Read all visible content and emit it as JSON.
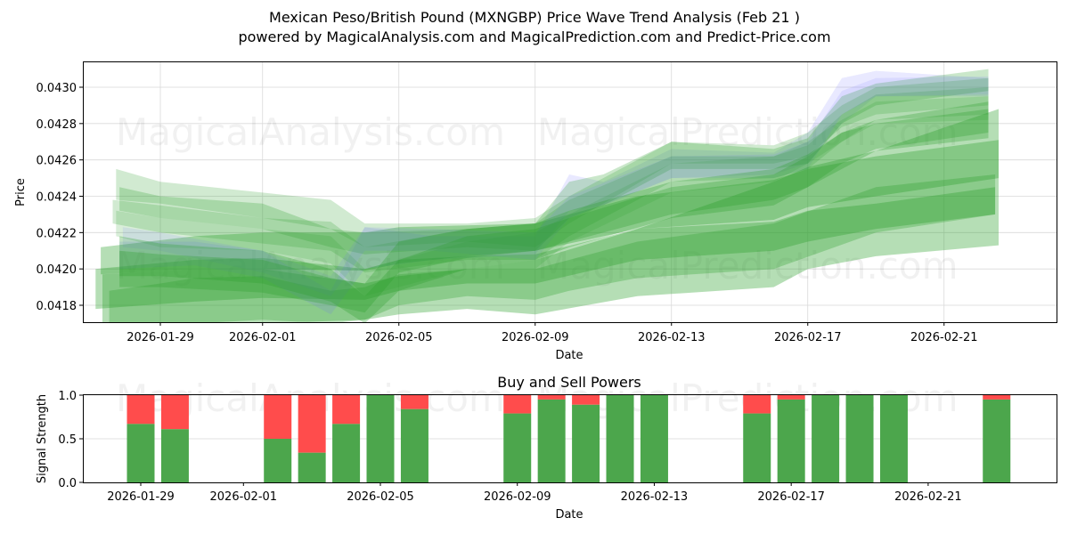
{
  "header": {
    "title": "Mexican Peso/British Pound (MXNGBP) Price Wave Trend Analysis (Feb 21 )",
    "subtitle": "powered by MagicalAnalysis.com and MagicalPrediction.com and Predict-Price.com"
  },
  "watermarks": [
    "MagicalAnalysis.com",
    "MagicalPrediction.com"
  ],
  "colors": {
    "green_band": "#2ca02c",
    "blue_band": "#6a6aff",
    "buy": "#4ca64c",
    "sell": "#ff4c4c",
    "grid": "#d9d9d9"
  },
  "chart_data": [
    {
      "type": "area",
      "title": "Mexican Peso/British Pound (MXNGBP) Price Wave Trend Analysis (Feb 21 )",
      "xlabel": "Date",
      "ylabel": "Price",
      "x_tick_labels": [
        "2026-01-29",
        "2026-02-01",
        "2026-02-05",
        "2026-02-09",
        "2026-02-13",
        "2026-02-17",
        "2026-02-21"
      ],
      "y_tick_labels": [
        "0.0418",
        "0.0420",
        "0.0422",
        "0.0424",
        "0.0426",
        "0.0428",
        "0.0430"
      ],
      "ylim": [
        0.04171,
        0.04314
      ],
      "xlim": [
        "2026-01-26",
        "2026-02-24"
      ],
      "grid": true,
      "x_dates": [
        "2026-01-27",
        "2026-01-28",
        "2026-01-29",
        "2026-01-30",
        "2026-02-02",
        "2026-02-03",
        "2026-02-04",
        "2026-02-05",
        "2026-02-06",
        "2026-02-09",
        "2026-02-10",
        "2026-02-11",
        "2026-02-12",
        "2026-02-13",
        "2026-02-16",
        "2026-02-17",
        "2026-02-18",
        "2026-02-19",
        "2026-02-20",
        "2026-02-23"
      ],
      "series": [
        {
          "name": "band-1",
          "color": "green",
          "alpha": 0.35,
          "x": [
            -1.8,
            1,
            3,
            6,
            7,
            9,
            11,
            11,
            14.5,
            18,
            19,
            21,
            24.6,
            24.6,
            21,
            19,
            18,
            14.5,
            11,
            11,
            9,
            7,
            6,
            3,
            1,
            -1.8
          ],
          "upper": [
            0.04212,
            0.04218,
            0.0422,
            0.0422,
            0.04223,
            0.04223,
            0.04225,
            0.04225,
            0.0424,
            0.04245,
            0.04252,
            0.04255,
            0.04265,
            0.04266,
            0.04272,
            0.04263,
            0.04256,
            0.04249,
            0.04232,
            0.04227,
            0.04227,
            0.04225,
            0.04222,
            0.0422,
            0.04218,
            0.04212
          ]
        },
        {
          "name": "band-2",
          "color": "green",
          "alpha": 0.35
        },
        {
          "name": "band-3",
          "color": "blue",
          "alpha": 0.15
        }
      ],
      "bands_note": "Overlapping translucent green (and a few blue) wave bands; overall trend rises from ~0.0420 (late Jan) to ~0.0426-0.0430 (Feb 23), with a dip near 2026-02-03 (~0.0418) and a jump around 2026-02-18/19."
    },
    {
      "type": "bar",
      "title": "Buy and Sell Powers",
      "xlabel": "Date",
      "ylabel": "Signal Strength",
      "ylim": [
        0,
        1
      ],
      "y_tick_labels": [
        "0.0",
        "0.5",
        "1.0"
      ],
      "x_tick_labels": [
        "2026-01-29",
        "2026-02-01",
        "2026-02-05",
        "2026-02-09",
        "2026-02-13",
        "2026-02-17",
        "2026-02-21"
      ],
      "categories": [
        "2026-01-29",
        "2026-01-30",
        "2026-02-02",
        "2026-02-03",
        "2026-02-04",
        "2026-02-05",
        "2026-02-06",
        "2026-02-09",
        "2026-02-10",
        "2026-02-11",
        "2026-02-12",
        "2026-02-13",
        "2026-02-16",
        "2026-02-17",
        "2026-02-18",
        "2026-02-19",
        "2026-02-20",
        "2026-02-23"
      ],
      "series": [
        {
          "name": "Buy",
          "color": "#4ca64c",
          "values": [
            0.67,
            0.61,
            0.5,
            0.34,
            0.67,
            1.0,
            0.84,
            0.79,
            0.95,
            0.89,
            1.0,
            1.0,
            0.79,
            0.95,
            1.0,
            1.0,
            1.0,
            0.95
          ]
        },
        {
          "name": "Sell",
          "color": "#ff4c4c",
          "values": [
            0.33,
            0.39,
            0.5,
            0.66,
            0.33,
            0.0,
            0.16,
            0.21,
            0.05,
            0.11,
            0.0,
            0.0,
            0.21,
            0.05,
            0.0,
            0.0,
            0.0,
            0.05
          ]
        }
      ]
    }
  ],
  "bands": [
    {
      "c": "g",
      "a": 0.35,
      "pts": [
        [
          -1.75,
          0.04212,
          0.04197
        ],
        [
          1,
          0.04218,
          0.042
        ],
        [
          3,
          0.0422,
          0.042
        ],
        [
          6,
          0.0422,
          0.04199
        ],
        [
          7,
          0.04223,
          0.04203
        ],
        [
          9,
          0.04224,
          0.04207
        ],
        [
          11,
          0.04225,
          0.0421
        ],
        [
          14,
          0.0424,
          0.04222
        ],
        [
          18,
          0.04249,
          0.04227
        ],
        [
          19,
          0.04255,
          0.04234
        ],
        [
          21,
          0.04262,
          0.0424
        ],
        [
          24.6,
          0.04271,
          0.0425
        ]
      ]
    },
    {
      "c": "g",
      "a": 0.35,
      "pts": [
        [
          -1.9,
          0.042,
          0.04178
        ],
        [
          1,
          0.04205,
          0.04182
        ],
        [
          3,
          0.04206,
          0.04184
        ],
        [
          6,
          0.042,
          0.04183
        ],
        [
          7,
          0.04205,
          0.04188
        ],
        [
          9,
          0.04207,
          0.04192
        ],
        [
          11,
          0.04208,
          0.04192
        ],
        [
          14,
          0.04222,
          0.04205
        ],
        [
          18,
          0.04226,
          0.0421
        ],
        [
          19,
          0.04232,
          0.04215
        ],
        [
          21,
          0.04236,
          0.04222
        ],
        [
          24.5,
          0.04245,
          0.0423
        ]
      ]
    },
    {
      "c": "g",
      "a": 0.35,
      "pts": [
        [
          -1.7,
          0.04197,
          0.0416
        ],
        [
          1,
          0.042,
          0.04165
        ],
        [
          3,
          0.042,
          0.0417
        ],
        [
          6,
          0.04192,
          0.04172
        ],
        [
          7,
          0.04196,
          0.04175
        ],
        [
          9,
          0.042,
          0.04178
        ],
        [
          11,
          0.04205,
          0.04175
        ],
        [
          14,
          0.04222,
          0.04185
        ],
        [
          18,
          0.04248,
          0.0419
        ],
        [
          19,
          0.04256,
          0.042
        ],
        [
          21,
          0.04265,
          0.04207
        ],
        [
          24.6,
          0.04288,
          0.04213
        ]
      ]
    },
    {
      "c": "g",
      "a": 0.3,
      "pts": [
        [
          -1.5,
          0.04188,
          0.0416
        ],
        [
          0,
          0.04192,
          0.04165
        ],
        [
          1,
          0.04195,
          0.0417
        ],
        [
          3,
          0.04196,
          0.04172
        ],
        [
          5,
          0.04188,
          0.0417
        ],
        [
          6,
          0.0419,
          0.04172
        ],
        [
          7,
          0.04197,
          0.0418
        ],
        [
          9,
          0.042,
          0.04185
        ],
        [
          11,
          0.042,
          0.04183
        ],
        [
          12,
          0.04205,
          0.04188
        ],
        [
          14,
          0.04215,
          0.04195
        ],
        [
          18,
          0.04225,
          0.042
        ],
        [
          21,
          0.04245,
          0.0422
        ],
        [
          24.5,
          0.04252,
          0.0423
        ]
      ]
    },
    {
      "c": "b",
      "a": 0.15,
      "pts": [
        [
          -1.2,
          0.04215,
          0.042
        ],
        [
          1,
          0.04215,
          0.04202
        ],
        [
          3,
          0.0421,
          0.04195
        ],
        [
          5,
          0.04188,
          0.04175
        ],
        [
          6,
          0.04223,
          0.042
        ],
        [
          8,
          0.04218,
          0.04205
        ],
        [
          11,
          0.04218,
          0.04208
        ],
        [
          12,
          0.04252,
          0.04232
        ],
        [
          13,
          0.04248,
          0.04235
        ],
        [
          15,
          0.04266,
          0.0425
        ],
        [
          18,
          0.04264,
          0.04252
        ],
        [
          19,
          0.04275,
          0.04258
        ],
        [
          20,
          0.04305,
          0.0428
        ],
        [
          21,
          0.04309,
          0.04295
        ],
        [
          24.3,
          0.04305,
          0.04295
        ]
      ]
    },
    {
      "c": "g",
      "a": 0.25,
      "pts": [
        [
          -1.2,
          0.04245,
          0.04232
        ],
        [
          0,
          0.0424,
          0.04228
        ],
        [
          3,
          0.04236,
          0.04222
        ],
        [
          5,
          0.04222,
          0.04212
        ],
        [
          6,
          0.0422,
          0.04208
        ],
        [
          9,
          0.04222,
          0.04212
        ],
        [
          11,
          0.04225,
          0.0421
        ],
        [
          12,
          0.04248,
          0.04228
        ],
        [
          13,
          0.04252,
          0.04235
        ],
        [
          15,
          0.0427,
          0.04255
        ],
        [
          18,
          0.04266,
          0.04255
        ],
        [
          19,
          0.04272,
          0.04258
        ],
        [
          20,
          0.04295,
          0.0428
        ],
        [
          21,
          0.04302,
          0.0429
        ],
        [
          24.3,
          0.0431,
          0.04298
        ]
      ]
    },
    {
      "c": "g",
      "a": 0.22,
      "pts": [
        [
          -1.3,
          0.04255,
          0.04238
        ],
        [
          0,
          0.04248,
          0.04236
        ],
        [
          3,
          0.04242,
          0.04228
        ],
        [
          5,
          0.04238,
          0.04222
        ],
        [
          6,
          0.04225,
          0.04212
        ],
        [
          9,
          0.04225,
          0.04215
        ],
        [
          11,
          0.04228,
          0.04212
        ],
        [
          12,
          0.0424,
          0.04225
        ],
        [
          15,
          0.0427,
          0.04258
        ],
        [
          18,
          0.04268,
          0.04258
        ],
        [
          19,
          0.04275,
          0.04262
        ],
        [
          20,
          0.0429,
          0.04278
        ],
        [
          21,
          0.043,
          0.04285
        ],
        [
          24.3,
          0.04305,
          0.0429
        ]
      ]
    },
    {
      "c": "g",
      "a": 0.22,
      "pts": [
        [
          -1.4,
          0.04238,
          0.04225
        ],
        [
          0,
          0.04235,
          0.0422
        ],
        [
          3,
          0.04228,
          0.04214
        ],
        [
          5,
          0.04226,
          0.0421
        ],
        [
          6,
          0.04212,
          0.04198
        ],
        [
          9,
          0.04222,
          0.04205
        ],
        [
          11,
          0.04225,
          0.04205
        ],
        [
          12,
          0.04238,
          0.04218
        ],
        [
          15,
          0.04262,
          0.04248
        ],
        [
          18,
          0.04262,
          0.0425
        ],
        [
          19,
          0.04268,
          0.04255
        ],
        [
          20,
          0.04285,
          0.0427
        ],
        [
          21,
          0.04296,
          0.04282
        ],
        [
          24.3,
          0.043,
          0.04285
        ]
      ]
    },
    {
      "c": "g",
      "a": 0.18,
      "pts": [
        [
          -1.3,
          0.04232,
          0.04218
        ],
        [
          0,
          0.04228,
          0.04212
        ],
        [
          3,
          0.04222,
          0.0421
        ],
        [
          5,
          0.04218,
          0.04203
        ],
        [
          6,
          0.042,
          0.04185
        ],
        [
          9,
          0.04215,
          0.042
        ],
        [
          11,
          0.0422,
          0.042
        ],
        [
          12,
          0.0423,
          0.04215
        ],
        [
          15,
          0.04258,
          0.04242
        ],
        [
          18,
          0.04262,
          0.04248
        ],
        [
          19,
          0.0427,
          0.04258
        ],
        [
          20,
          0.04282,
          0.0427
        ],
        [
          21,
          0.04292,
          0.0428
        ],
        [
          24.3,
          0.04295,
          0.04282
        ]
      ]
    },
    {
      "c": "b",
      "a": 0.12,
      "pts": [
        [
          -1.1,
          0.04223,
          0.04212
        ],
        [
          0,
          0.0422,
          0.0421
        ],
        [
          3,
          0.0421,
          0.04198
        ],
        [
          5,
          0.04196,
          0.04185
        ],
        [
          6,
          0.04223,
          0.0421
        ],
        [
          8,
          0.04222,
          0.0421
        ],
        [
          11,
          0.0422,
          0.04205
        ],
        [
          12,
          0.0424,
          0.04228
        ],
        [
          15,
          0.04262,
          0.0425
        ],
        [
          18,
          0.04263,
          0.0425
        ],
        [
          19,
          0.0427,
          0.04255
        ],
        [
          20,
          0.04298,
          0.04285
        ],
        [
          21,
          0.04305,
          0.04295
        ],
        [
          24.3,
          0.04306,
          0.04296
        ]
      ]
    },
    {
      "c": "g",
      "a": 0.3,
      "pts": [
        [
          -1.2,
          0.0421,
          0.0419
        ],
        [
          0,
          0.04208,
          0.0419
        ],
        [
          3,
          0.04205,
          0.04187
        ],
        [
          5,
          0.04195,
          0.0418
        ],
        [
          6,
          0.04192,
          0.04176
        ],
        [
          7,
          0.04215,
          0.04198
        ],
        [
          9,
          0.04222,
          0.04206
        ],
        [
          11,
          0.04225,
          0.0421
        ],
        [
          12,
          0.04232,
          0.04215
        ],
        [
          15,
          0.04248,
          0.0423
        ],
        [
          18,
          0.04255,
          0.04238
        ],
        [
          19,
          0.04263,
          0.04245
        ],
        [
          20,
          0.04275,
          0.04255
        ],
        [
          21,
          0.0428,
          0.04265
        ],
        [
          24.3,
          0.04288,
          0.04272
        ]
      ]
    },
    {
      "c": "g",
      "a": 0.3,
      "pts": [
        [
          -1.2,
          0.04218,
          0.04196
        ],
        [
          0,
          0.04214,
          0.04196
        ],
        [
          3,
          0.0421,
          0.04192
        ],
        [
          5,
          0.042,
          0.04182
        ],
        [
          6,
          0.04185,
          0.0417
        ],
        [
          7,
          0.04205,
          0.04188
        ],
        [
          9,
          0.04218,
          0.042
        ],
        [
          11,
          0.04222,
          0.04205
        ],
        [
          12,
          0.04228,
          0.04212
        ],
        [
          15,
          0.04245,
          0.04228
        ],
        [
          18,
          0.04252,
          0.04235
        ],
        [
          19,
          0.04262,
          0.04245
        ],
        [
          20,
          0.04275,
          0.04258
        ],
        [
          21,
          0.04282,
          0.04266
        ],
        [
          24.3,
          0.04292,
          0.04275
        ]
      ]
    }
  ],
  "bars": [
    {
      "d": 0,
      "buy": 0.67
    },
    {
      "d": 1,
      "buy": 0.61
    },
    {
      "d": 4,
      "buy": 0.5
    },
    {
      "d": 5,
      "buy": 0.34
    },
    {
      "d": 6,
      "buy": 0.67
    },
    {
      "d": 7,
      "buy": 1.0
    },
    {
      "d": 8,
      "buy": 0.84
    },
    {
      "d": 11,
      "buy": 0.79
    },
    {
      "d": 12,
      "buy": 0.95
    },
    {
      "d": 13,
      "buy": 0.89
    },
    {
      "d": 14,
      "buy": 1.0
    },
    {
      "d": 15,
      "buy": 1.0
    },
    {
      "d": 18,
      "buy": 0.79
    },
    {
      "d": 19,
      "buy": 0.95
    },
    {
      "d": 20,
      "buy": 1.0
    },
    {
      "d": 21,
      "buy": 1.0
    },
    {
      "d": 22,
      "buy": 1.0
    },
    {
      "d": 25,
      "buy": 0.95
    }
  ],
  "main": {
    "xlabel": "Date",
    "ylabel": "Price",
    "x_ticks": [
      {
        "d": 0,
        "label": "2026-01-29"
      },
      {
        "d": 3,
        "label": "2026-02-01"
      },
      {
        "d": 7,
        "label": "2026-02-05"
      },
      {
        "d": 11,
        "label": "2026-02-09"
      },
      {
        "d": 15,
        "label": "2026-02-13"
      },
      {
        "d": 19,
        "label": "2026-02-17"
      },
      {
        "d": 23,
        "label": "2026-02-21"
      }
    ],
    "y_ticks": [
      {
        "v": 0.0418,
        "label": "0.0418"
      },
      {
        "v": 0.042,
        "label": "0.0420"
      },
      {
        "v": 0.0422,
        "label": "0.0422"
      },
      {
        "v": 0.0424,
        "label": "0.0424"
      },
      {
        "v": 0.0426,
        "label": "0.0426"
      },
      {
        "v": 0.0428,
        "label": "0.0428"
      },
      {
        "v": 0.043,
        "label": "0.0430"
      }
    ]
  },
  "sub": {
    "title": "Buy and Sell Powers",
    "xlabel": "Date",
    "ylabel": "Signal Strength",
    "y_ticks": [
      {
        "v": 0,
        "label": "0.0"
      },
      {
        "v": 0.5,
        "label": "0.5"
      },
      {
        "v": 1,
        "label": "1.0"
      }
    ]
  }
}
